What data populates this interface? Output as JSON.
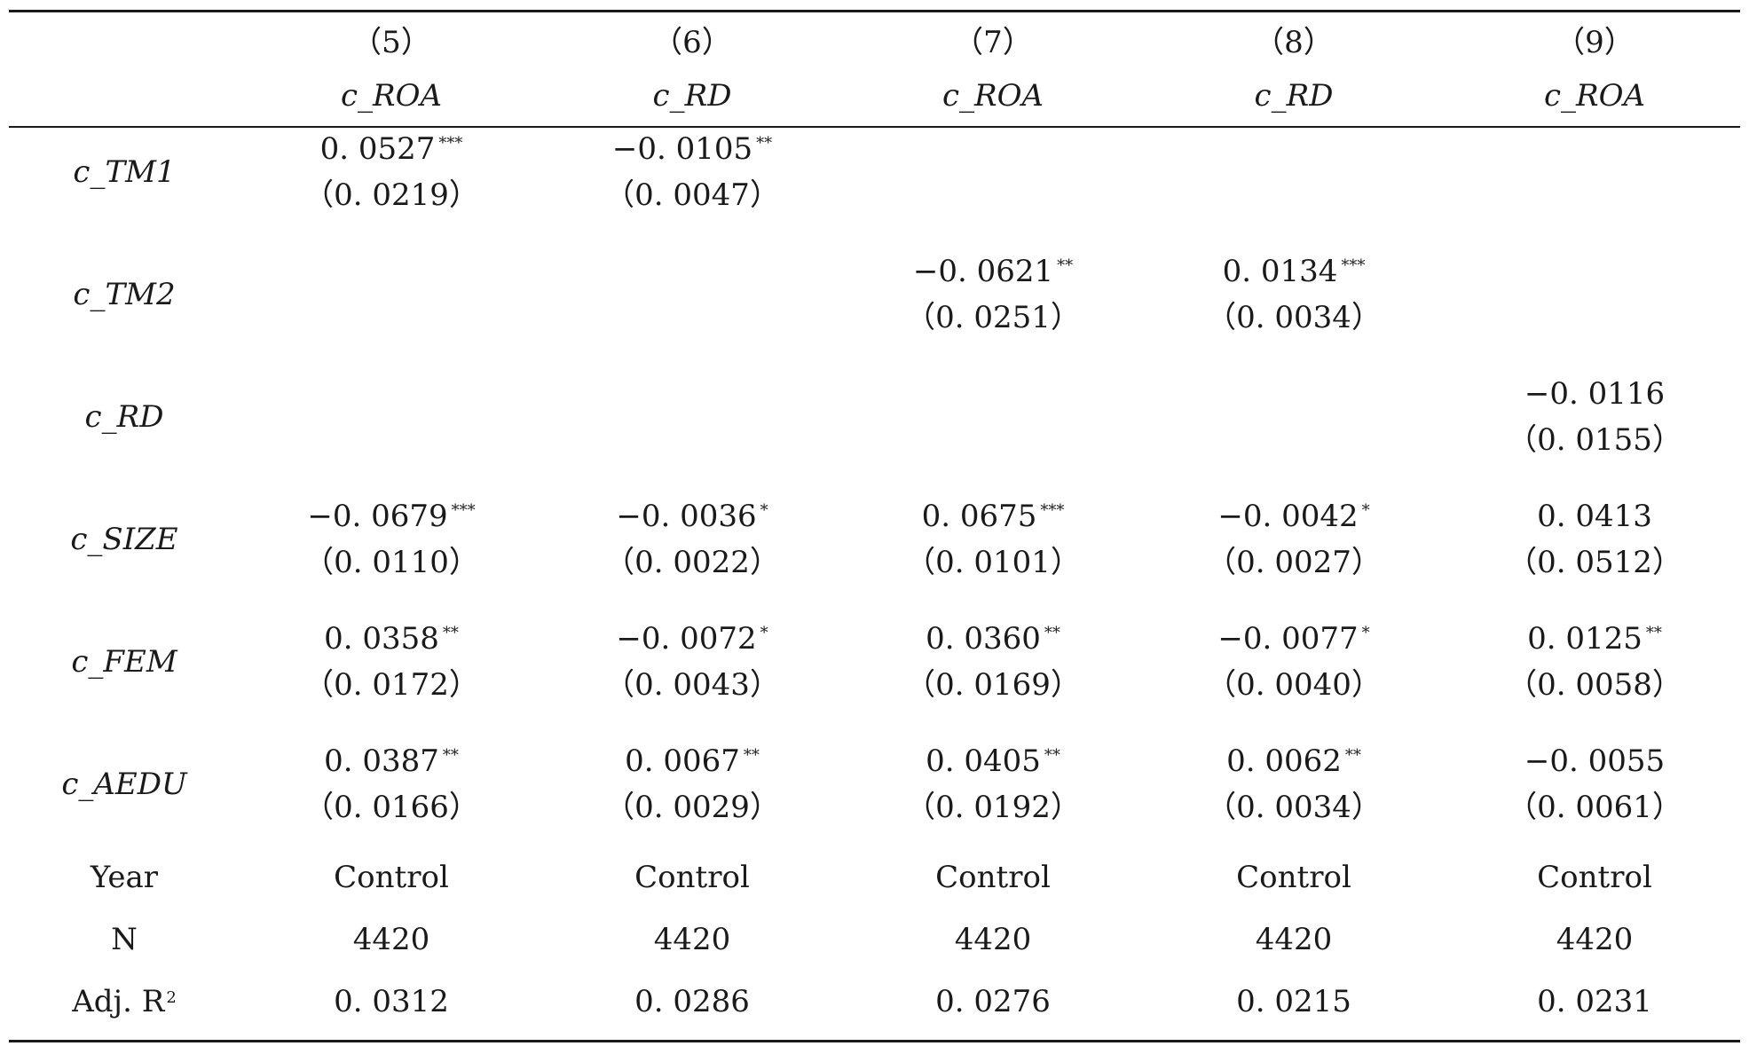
{
  "columns": [
    {
      "num": "（5）",
      "dep": "c_ROA"
    },
    {
      "num": "（6）",
      "dep": "c_RD"
    },
    {
      "num": "（7）",
      "dep": "c_ROA"
    },
    {
      "num": "（8）",
      "dep": "c_RD"
    },
    {
      "num": "（9）",
      "dep": "c_ROA"
    }
  ],
  "coef_rows": [
    {
      "label": "c_TM1",
      "cells": [
        {
          "coef": "0. 0527",
          "stars": "***",
          "se": "（0. 0219）"
        },
        {
          "coef": "−0. 0105",
          "stars": "**",
          "se": "（0. 0047）"
        },
        {
          "coef": "",
          "stars": "",
          "se": ""
        },
        {
          "coef": "",
          "stars": "",
          "se": ""
        },
        {
          "coef": "",
          "stars": "",
          "se": ""
        }
      ]
    },
    {
      "label": "c_TM2",
      "cells": [
        {
          "coef": "",
          "stars": "",
          "se": ""
        },
        {
          "coef": "",
          "stars": "",
          "se": ""
        },
        {
          "coef": "−0. 0621",
          "stars": "**",
          "se": "（0. 0251）"
        },
        {
          "coef": "0. 0134",
          "stars": "***",
          "se": "（0. 0034）"
        },
        {
          "coef": "",
          "stars": "",
          "se": ""
        }
      ]
    },
    {
      "label": "c_RD",
      "cells": [
        {
          "coef": "",
          "stars": "",
          "se": ""
        },
        {
          "coef": "",
          "stars": "",
          "se": ""
        },
        {
          "coef": "",
          "stars": "",
          "se": ""
        },
        {
          "coef": "",
          "stars": "",
          "se": ""
        },
        {
          "coef": "−0. 0116",
          "stars": "",
          "se": "（0. 0155）"
        }
      ]
    },
    {
      "label": "c_SIZE",
      "cells": [
        {
          "coef": "−0. 0679",
          "stars": "***",
          "se": "（0. 0110）"
        },
        {
          "coef": "−0. 0036",
          "stars": "*",
          "se": "（0. 0022）"
        },
        {
          "coef": "0. 0675",
          "stars": "***",
          "se": "（0. 0101）"
        },
        {
          "coef": "−0. 0042",
          "stars": "*",
          "se": "（0. 0027）"
        },
        {
          "coef": "0. 0413",
          "stars": "",
          "se": "（0. 0512）"
        }
      ]
    },
    {
      "label": "c_FEM",
      "cells": [
        {
          "coef": "0. 0358",
          "stars": "**",
          "se": "（0. 0172）"
        },
        {
          "coef": "−0. 0072",
          "stars": "*",
          "se": "（0. 0043）"
        },
        {
          "coef": "0. 0360",
          "stars": "**",
          "se": "（0. 0169）"
        },
        {
          "coef": "−0. 0077",
          "stars": "*",
          "se": "（0. 0040）"
        },
        {
          "coef": "0. 0125",
          "stars": "**",
          "se": "（0. 0058）"
        }
      ]
    },
    {
      "label": "c_AEDU",
      "cells": [
        {
          "coef": "0. 0387",
          "stars": "**",
          "se": "（0. 0166）"
        },
        {
          "coef": "0. 0067",
          "stars": "**",
          "se": "（0. 0029）"
        },
        {
          "coef": "0. 0405",
          "stars": "**",
          "se": "（0. 0192）"
        },
        {
          "coef": "0. 0062",
          "stars": "**",
          "se": "（0. 0034）"
        },
        {
          "coef": "−0. 0055",
          "stars": "",
          "se": "（0. 0061）"
        }
      ]
    }
  ],
  "footer_rows": [
    {
      "label": "Year",
      "values": [
        "Control",
        "Control",
        "Control",
        "Control",
        "Control"
      ]
    },
    {
      "label": "N",
      "values": [
        "4420",
        "4420",
        "4420",
        "4420",
        "4420"
      ]
    },
    {
      "label": "Adj. R",
      "label_sup": "2",
      "values": [
        "0. 0312",
        "0. 0286",
        "0. 0276",
        "0. 0215",
        "0. 0231"
      ]
    }
  ]
}
